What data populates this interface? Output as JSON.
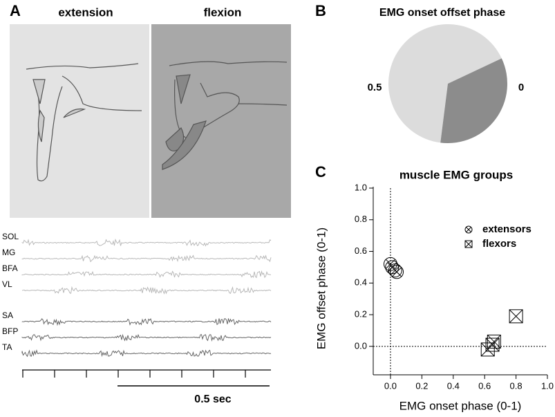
{
  "panel_labels": [
    "A",
    "B",
    "C"
  ],
  "panel_a": {
    "titles": [
      "extension",
      "flexion"
    ],
    "traces": [
      "SOL",
      "MG",
      "BFA",
      "VL",
      "SA",
      "BFP",
      "TA"
    ],
    "scale_bar": "0.5 sec"
  },
  "chart_data": [
    {
      "type": "pie",
      "title": "EMG onset offset phase",
      "values": [
        0.66,
        0.34
      ],
      "colors": [
        "#dcdcdc",
        "#8c8c8c"
      ],
      "start_phase": 0.27,
      "phase_ticks": [
        0.5,
        0
      ]
    },
    {
      "type": "scatter",
      "title": "muscle EMG groups",
      "xlabel": "EMG onset phase (0-1)",
      "ylabel": "EMG offset phase (0-1)",
      "xlim": [
        -0.11,
        1.0
      ],
      "ylim": [
        -0.18,
        1.0
      ],
      "xticks": [
        {
          "value": 0,
          "label": "0.0"
        },
        0.2,
        0.4,
        0.6,
        0.8,
        {
          "value": 1,
          "label": "1.0"
        }
      ],
      "yticks": [
        {
          "value": 0,
          "label": "0.0"
        },
        0.2,
        0.4,
        0.6,
        0.8,
        {
          "value": 1,
          "label": "1.0"
        }
      ],
      "zero_lines": true,
      "legend": "upper right",
      "series": [
        {
          "name": "extensors",
          "marker": "circle-x",
          "color": "#000000",
          "x": [
            0.0,
            0.01,
            0.03,
            0.04
          ],
          "y": [
            0.52,
            0.5,
            0.48,
            0.47
          ]
        },
        {
          "name": "flexors",
          "marker": "box-x",
          "color": "#000000",
          "x": [
            0.8,
            0.66,
            0.62,
            0.65
          ],
          "y": [
            0.19,
            0.03,
            -0.02,
            0.01
          ]
        }
      ]
    }
  ]
}
